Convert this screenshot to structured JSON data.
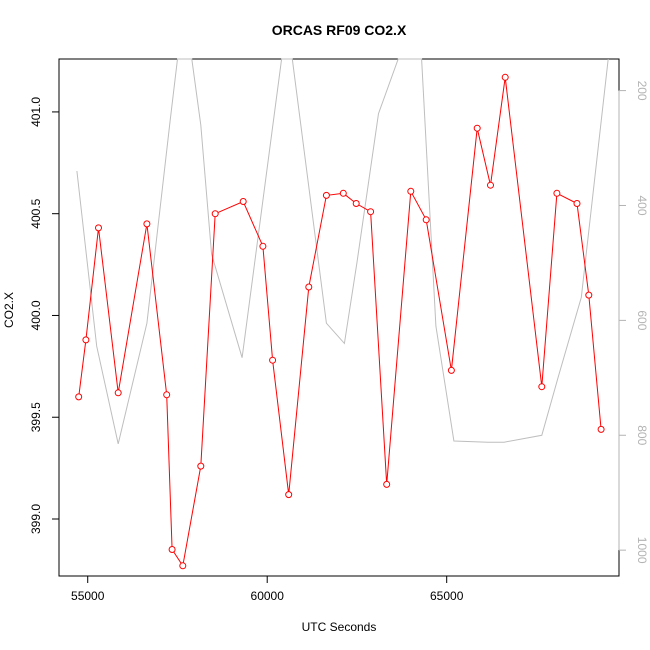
{
  "chart_data": {
    "type": "line",
    "title": "ORCAS RF09 CO2.X",
    "xlabel": "UTC Seconds",
    "ylabel": "CO2.X",
    "xlim": [
      54200,
      69800
    ],
    "ylim": [
      398.72,
      401.26
    ],
    "y2lim": [
      1045,
      145
    ],
    "x_ticks": [
      55000,
      60000,
      65000
    ],
    "x_tick_labels": [
      "55000",
      "60000",
      "65000"
    ],
    "y_ticks": [
      399.0,
      399.5,
      400.0,
      400.5,
      401.0
    ],
    "y_tick_labels": [
      "399.0",
      "399.5",
      "400.0",
      "400.5",
      "401.0"
    ],
    "y2_ticks": [
      200,
      400,
      600,
      800,
      1000
    ],
    "y2_tick_labels": [
      "200",
      "400",
      "600",
      "800",
      "1000"
    ],
    "colors": {
      "primary": "#ff0000",
      "secondary": "#bebebe",
      "axis": "#000000",
      "right_axis": "#b3b3b3"
    },
    "series": [
      {
        "axis": "left",
        "style": "line+markers",
        "x": [
          54750,
          54950,
          55300,
          55850,
          56650,
          57200,
          57350,
          57650,
          58150,
          58550,
          59330,
          59880,
          60150,
          60600,
          61160,
          61650,
          62120,
          62480,
          62880,
          63330,
          64000,
          64430,
          65130,
          65850,
          66220,
          66630,
          67650,
          68070,
          68630,
          68960,
          69300
        ],
        "y": [
          399.6,
          399.88,
          400.43,
          399.62,
          400.45,
          399.61,
          398.85,
          398.77,
          399.26,
          400.5,
          400.56,
          400.34,
          399.78,
          399.12,
          400.14,
          400.59,
          400.6,
          400.55,
          400.51,
          399.17,
          400.61,
          400.47,
          399.73,
          400.92,
          400.64,
          401.17,
          399.65,
          400.6,
          400.55,
          400.1,
          399.44
        ]
      },
      {
        "axis": "right",
        "style": "line",
        "x": [
          54700,
          55250,
          55850,
          56650,
          57300,
          57500,
          57700,
          57900,
          58150,
          58450,
          59300,
          60400,
          60700,
          61650,
          62150,
          62500,
          63100,
          63650,
          64300,
          64700,
          65200,
          66150,
          66600,
          67650,
          68100,
          68750,
          69500
        ],
        "y": [
          340,
          645,
          815,
          605,
          250,
          145,
          145,
          145,
          260,
          485,
          665,
          145,
          145,
          605,
          640,
          500,
          240,
          145,
          145,
          610,
          810,
          812,
          812,
          800,
          700,
          560,
          145
        ]
      }
    ]
  }
}
